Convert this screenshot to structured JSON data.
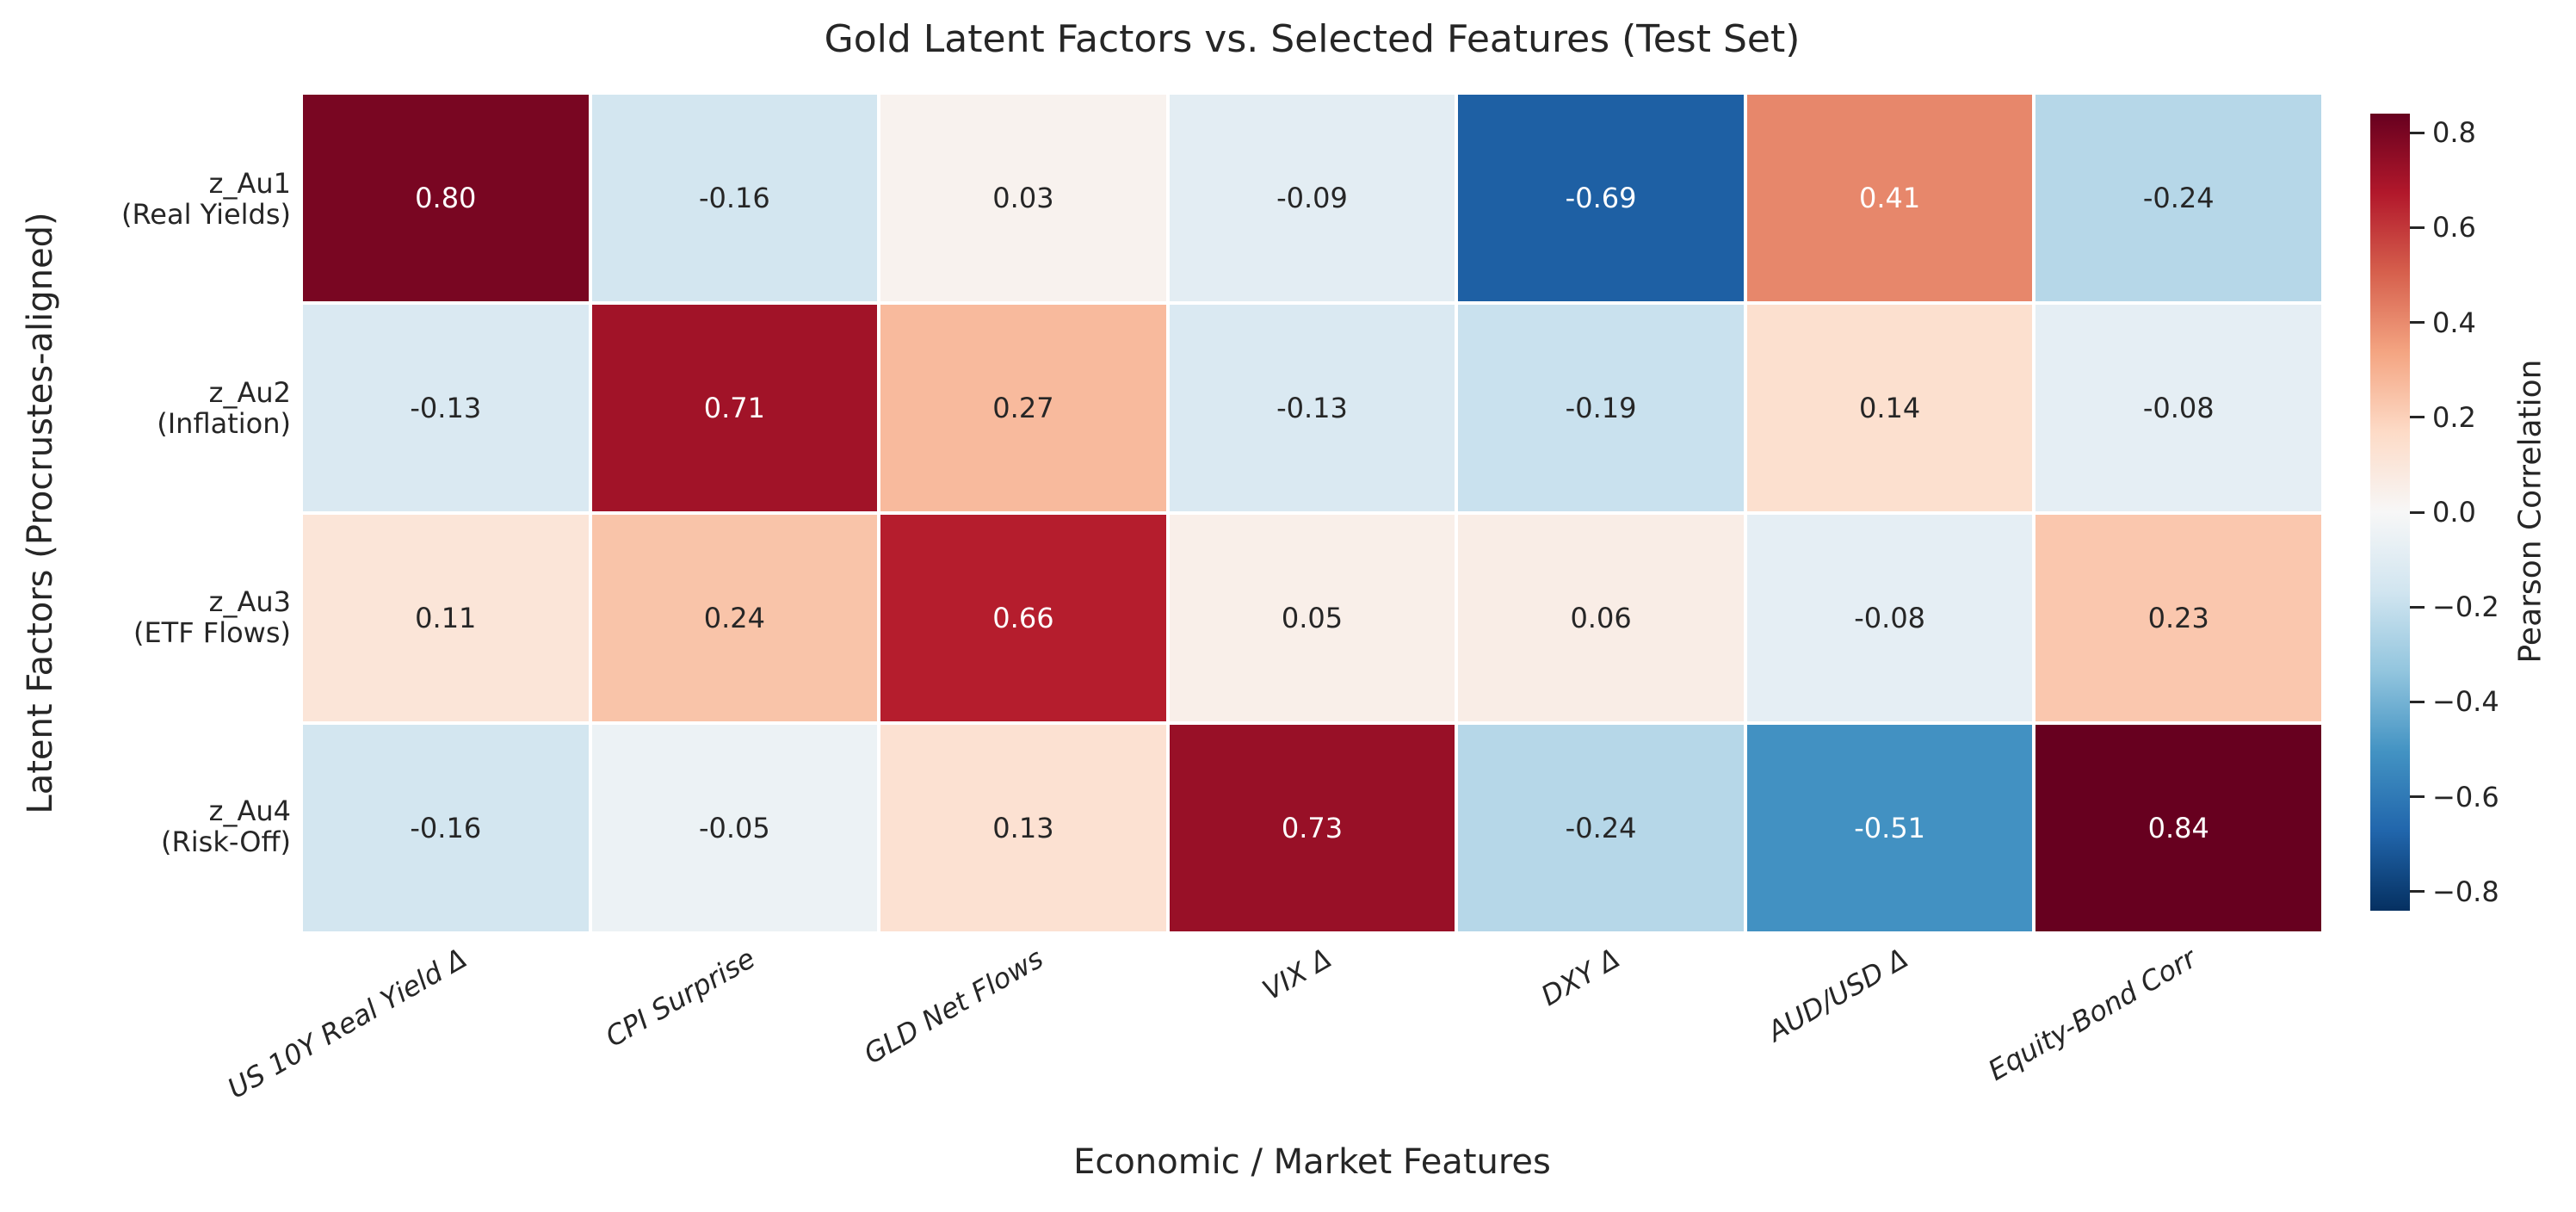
{
  "chart_data": {
    "type": "heatmap",
    "title": "Gold Latent Factors vs. Selected Features (Test Set)",
    "xlabel": "Economic / Market Features",
    "ylabel": "Latent Factors (Procrustes-aligned)",
    "colorbar_label": "Pearson Correlation",
    "columns": [
      "US 10Y Real Yield Δ",
      "CPI Surprise",
      "GLD Net Flows",
      "VIX Δ",
      "DXY Δ",
      "AUD/USD Δ",
      "Equity-Bond Corr"
    ],
    "rows": [
      {
        "line1": "z_Au1",
        "line2": "(Real Yields)"
      },
      {
        "line1": "z_Au2",
        "line2": "(Inflation)"
      },
      {
        "line1": "z_Au3",
        "line2": "(ETF Flows)"
      },
      {
        "line1": "z_Au4",
        "line2": "(Risk-Off)"
      }
    ],
    "values": [
      [
        0.8,
        -0.16,
        0.03,
        -0.09,
        -0.69,
        0.41,
        -0.24
      ],
      [
        -0.13,
        0.71,
        0.27,
        -0.13,
        -0.19,
        0.14,
        -0.08
      ],
      [
        0.11,
        0.24,
        0.66,
        0.05,
        0.06,
        -0.08,
        0.23
      ],
      [
        -0.16,
        -0.05,
        0.13,
        0.73,
        -0.24,
        -0.51,
        0.84
      ]
    ],
    "value_format_decimals": 2,
    "vmin": -0.84,
    "vmax": 0.84,
    "colormap_name": "RdBu_r",
    "colormap_stops": [
      "#053061",
      "#2166ac",
      "#4393c3",
      "#92c5de",
      "#d1e5f0",
      "#f7f7f7",
      "#fddbc7",
      "#f4a582",
      "#d6604d",
      "#b2182b",
      "#67001f"
    ],
    "annotation_color_dark": "#262626",
    "annotation_color_light": "#ffffff",
    "grid_line_color": "#ffffff",
    "colorbar_ticks": [
      {
        "label": "0.8",
        "value": 0.8
      },
      {
        "label": "0.6",
        "value": 0.6
      },
      {
        "label": "0.4",
        "value": 0.4
      },
      {
        "label": "0.2",
        "value": 0.2
      },
      {
        "label": "0.0",
        "value": 0.0
      },
      {
        "label": "−0.2",
        "value": -0.2
      },
      {
        "label": "−0.4",
        "value": -0.4
      },
      {
        "label": "−0.6",
        "value": -0.6
      },
      {
        "label": "−0.8",
        "value": -0.8
      }
    ],
    "legend_position": "right",
    "grid": false
  }
}
